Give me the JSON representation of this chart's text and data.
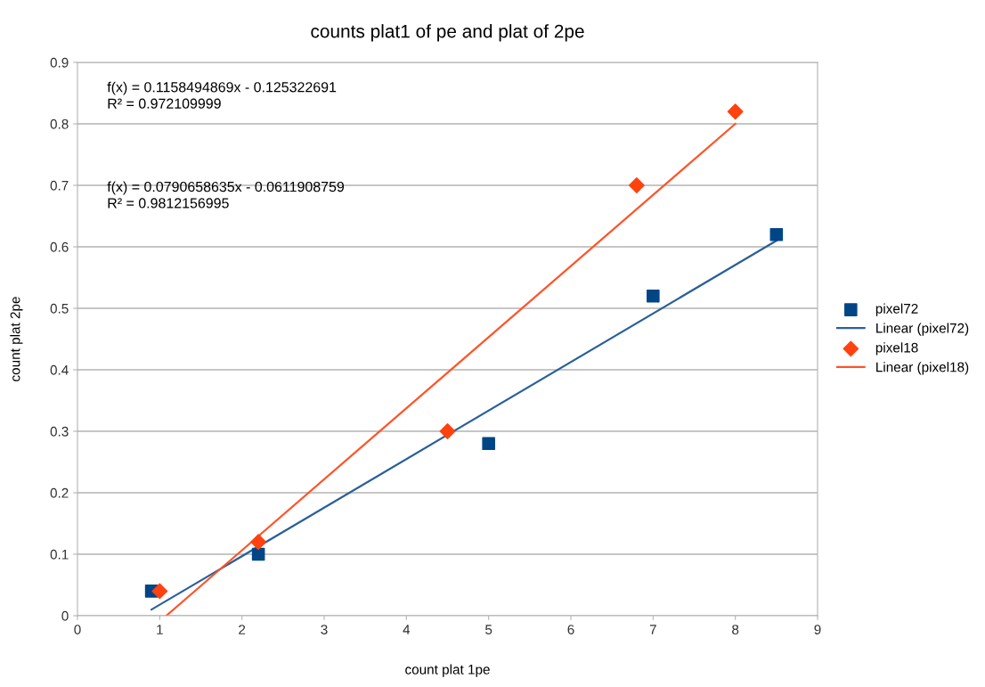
{
  "chart_data": {
    "type": "scatter",
    "title": "counts plat1 of pe and plat of 2pe",
    "xlabel": "count plat 1pe",
    "ylabel": "count plat 2pe",
    "series": [
      {
        "name": "pixel72",
        "marker": "square",
        "color": "#004586",
        "x": [
          0.9,
          2.2,
          5,
          7,
          8.5
        ],
        "values": [
          0.04,
          0.1,
          0.28,
          0.52,
          0.62
        ]
      },
      {
        "name": "Linear (pixel72)",
        "type": "line",
        "marker": "none",
        "color": "#2a6099",
        "x": [
          0.9,
          8.5
        ],
        "values": [
          0.01,
          0.61
        ]
      },
      {
        "name": "pixel18",
        "marker": "diamond",
        "color": "#ff420e",
        "x": [
          1.0,
          2.2,
          4.5,
          6.8,
          8.0
        ],
        "values": [
          0.04,
          0.12,
          0.3,
          0.7,
          0.82
        ]
      },
      {
        "name": "Linear (pixel18)",
        "type": "line",
        "marker": "none",
        "color": "#ff5429",
        "x": [
          1.08,
          8.0
        ],
        "values": [
          0,
          0.8
        ]
      }
    ],
    "annotations": [
      "f(x) = 0.1158494869x - 0.125322691\nR² = 0.972109999",
      "f(x) = 0.0790658635x - 0.0611908759\nR² = 0.9812156995"
    ],
    "xlim": [
      0,
      9
    ],
    "xticks": [
      0,
      1,
      2,
      3,
      4,
      5,
      6,
      7,
      8,
      9
    ],
    "ylim": [
      0,
      0.9
    ],
    "yticks": [
      0,
      0.1,
      0.2,
      0.3,
      0.4,
      0.5,
      0.6,
      0.7,
      0.8,
      0.9
    ],
    "grid": "y",
    "legend": "right"
  }
}
